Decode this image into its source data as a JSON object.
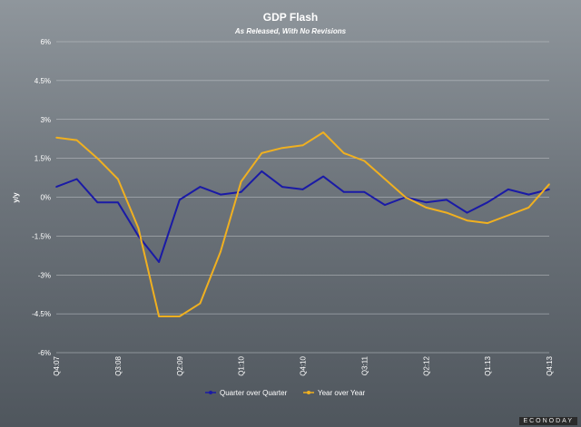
{
  "chart_data": {
    "type": "line",
    "title": "GDP Flash",
    "subtitle": "As Released, With No Revisions",
    "ylabel": "y/y",
    "xlabel": "",
    "ylim": [
      -6,
      6
    ],
    "yticks": [
      6,
      4.5,
      3,
      1.5,
      0,
      -1.5,
      -3,
      -4.5,
      -6
    ],
    "ytick_labels": [
      "6%",
      "4.5%",
      "3%",
      "1.5%",
      "0%",
      "-1.5%",
      "-3%",
      "-4.5%",
      "-6%"
    ],
    "grid": true,
    "legend_position": "bottom",
    "categories": [
      "Q4:07",
      "Q1:08",
      "Q2:08",
      "Q3:08",
      "Q4:08",
      "Q1:09",
      "Q2:09",
      "Q3:09",
      "Q4:09",
      "Q1:10",
      "Q2:10",
      "Q3:10",
      "Q4:10",
      "Q1:11",
      "Q2:11",
      "Q3:11",
      "Q4:11",
      "Q1:12",
      "Q2:12",
      "Q3:12",
      "Q4:12",
      "Q1:13",
      "Q2:13",
      "Q3:13",
      "Q4:13"
    ],
    "tick_labels": [
      {
        "index": 0,
        "label": "Q4:07"
      },
      {
        "index": 3,
        "label": "Q3:08"
      },
      {
        "index": 6,
        "label": "Q2:09"
      },
      {
        "index": 9,
        "label": "Q1:10"
      },
      {
        "index": 12,
        "label": "Q4:10"
      },
      {
        "index": 15,
        "label": "Q3:11"
      },
      {
        "index": 18,
        "label": "Q2:12"
      },
      {
        "index": 21,
        "label": "Q1:13"
      },
      {
        "index": 24,
        "label": "Q4:13"
      }
    ],
    "series": [
      {
        "name": "Quarter over Quarter",
        "color": "#1a1aa6",
        "values": [
          0.4,
          0.7,
          -0.2,
          -0.2,
          -1.5,
          -2.5,
          -0.1,
          0.4,
          0.1,
          0.2,
          1.0,
          0.4,
          0.3,
          0.8,
          0.2,
          0.2,
          -0.3,
          0.0,
          -0.2,
          -0.1,
          -0.6,
          -0.2,
          0.3,
          0.1,
          0.3
        ]
      },
      {
        "name": "Year over Year",
        "color": "#f0b020",
        "values": [
          2.3,
          2.2,
          1.5,
          0.7,
          -1.2,
          -4.6,
          -4.6,
          -4.1,
          -2.1,
          0.6,
          1.7,
          1.9,
          2.0,
          2.5,
          1.7,
          1.4,
          0.7,
          0.0,
          -0.4,
          -0.6,
          -0.9,
          -1.0,
          -0.7,
          -0.4,
          0.5
        ]
      }
    ]
  },
  "branding": "ECONODAY"
}
